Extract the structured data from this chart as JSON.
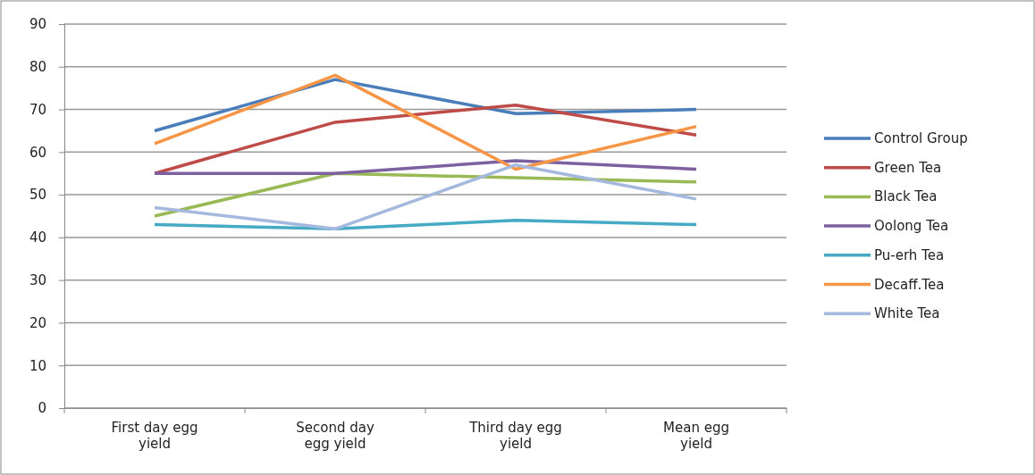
{
  "chart_data": {
    "type": "line",
    "categories": [
      "First day egg yield",
      "Second day egg yield",
      "Third day egg yield",
      "Mean egg yield"
    ],
    "ylim": [
      0,
      90
    ],
    "yticks": [
      0,
      10,
      20,
      30,
      40,
      50,
      60,
      70,
      80,
      90
    ],
    "grid": "y",
    "legend": "right",
    "marker": "none",
    "line_style": "solid",
    "series": [
      {
        "name": "Control Group",
        "color": "#4a7ebb",
        "values": [
          65,
          77,
          69,
          70
        ]
      },
      {
        "name": "Green Tea",
        "color": "#be4b48",
        "values": [
          55,
          67,
          71,
          64
        ]
      },
      {
        "name": "Black Tea",
        "color": "#98b954",
        "values": [
          45,
          55,
          54,
          53
        ]
      },
      {
        "name": "Oolong Tea",
        "color": "#7d60a0",
        "values": [
          55,
          55,
          58,
          56
        ]
      },
      {
        "name": "Pu-erh Tea",
        "color": "#46aac5",
        "values": [
          43,
          42,
          44,
          43
        ]
      },
      {
        "name": "Decaff.Tea",
        "color": "#f69546",
        "values": [
          62,
          78,
          56,
          66
        ]
      },
      {
        "name": "White Tea",
        "color": "#a5b9de",
        "values": [
          47,
          42,
          57,
          49
        ]
      }
    ]
  }
}
